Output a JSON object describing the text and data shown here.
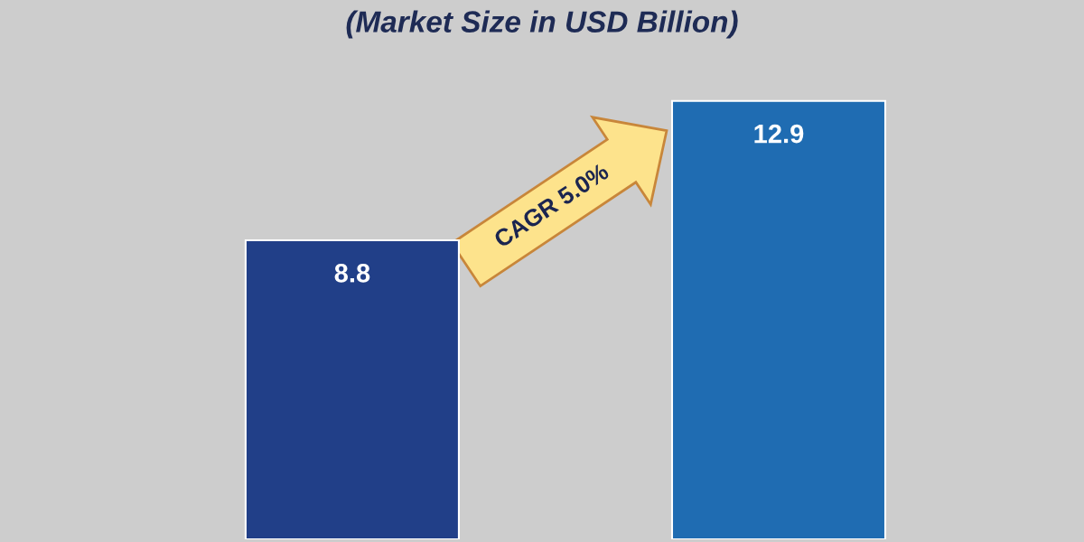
{
  "chart_data": {
    "type": "bar",
    "title": "(Market Size in USD Billion)",
    "categories": [
      null,
      null
    ],
    "values": [
      8.8,
      12.9
    ],
    "colors": [
      "#213f88",
      "#1f6cb2"
    ],
    "data_labels": true,
    "annotations": [
      "CAGR 5.0%"
    ]
  }
}
